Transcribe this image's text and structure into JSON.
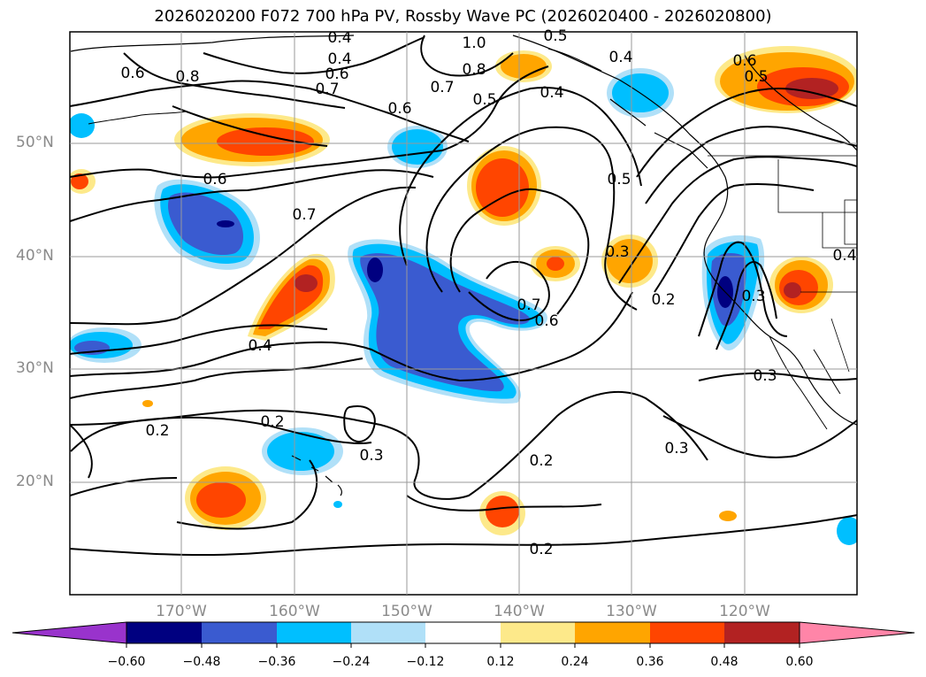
{
  "title": "2026020200 F072 700 hPa PV, Rossby Wave PC (2026020400 - 2026020800)",
  "map": {
    "lat_labels": [
      "50°N",
      "40°N",
      "30°N",
      "20°N"
    ],
    "lon_labels": [
      "170°W",
      "160°W",
      "150°W",
      "140°W",
      "130°W",
      "120°W"
    ],
    "contour_labels": [
      "0.4",
      "1.0",
      "0.4",
      "0.5",
      "0.6",
      "0.7",
      "0.8",
      "0.6",
      "0.8",
      "0.7",
      "0.5",
      "0.4",
      "0.4",
      "0.6",
      "0.5",
      "0.6",
      "0.6",
      "0.7",
      "0.4",
      "0.5",
      "0.3",
      "0.2",
      "0.3",
      "0.7",
      "0.6",
      "0.4",
      "0.3",
      "0.2",
      "0.2",
      "0.3",
      "0.2",
      "0.3",
      "0.2"
    ],
    "fill_colors": {
      "neg_extreme": "#9933cc",
      "neg_060": "#000080",
      "neg_048": "#3a5bd0",
      "neg_036": "#00bfff",
      "neg_024": "#b0e0f8",
      "pos_012": "#fde98a",
      "pos_024": "#ffa500",
      "pos_036": "#ff4500",
      "pos_048": "#b22222",
      "pos_extreme": "#ff85a8"
    }
  },
  "colorbar": {
    "ticks": [
      "−0.60",
      "−0.48",
      "−0.36",
      "−0.24",
      "−0.12",
      "0.12",
      "0.24",
      "0.36",
      "0.48",
      "0.60"
    ],
    "colors": [
      "#9933cc",
      "#000080",
      "#3a5bd0",
      "#00bfff",
      "#b0e0f8",
      "#ffffff",
      "#fde98a",
      "#ffa500",
      "#ff4500",
      "#b22222",
      "#ff85a8"
    ]
  }
}
